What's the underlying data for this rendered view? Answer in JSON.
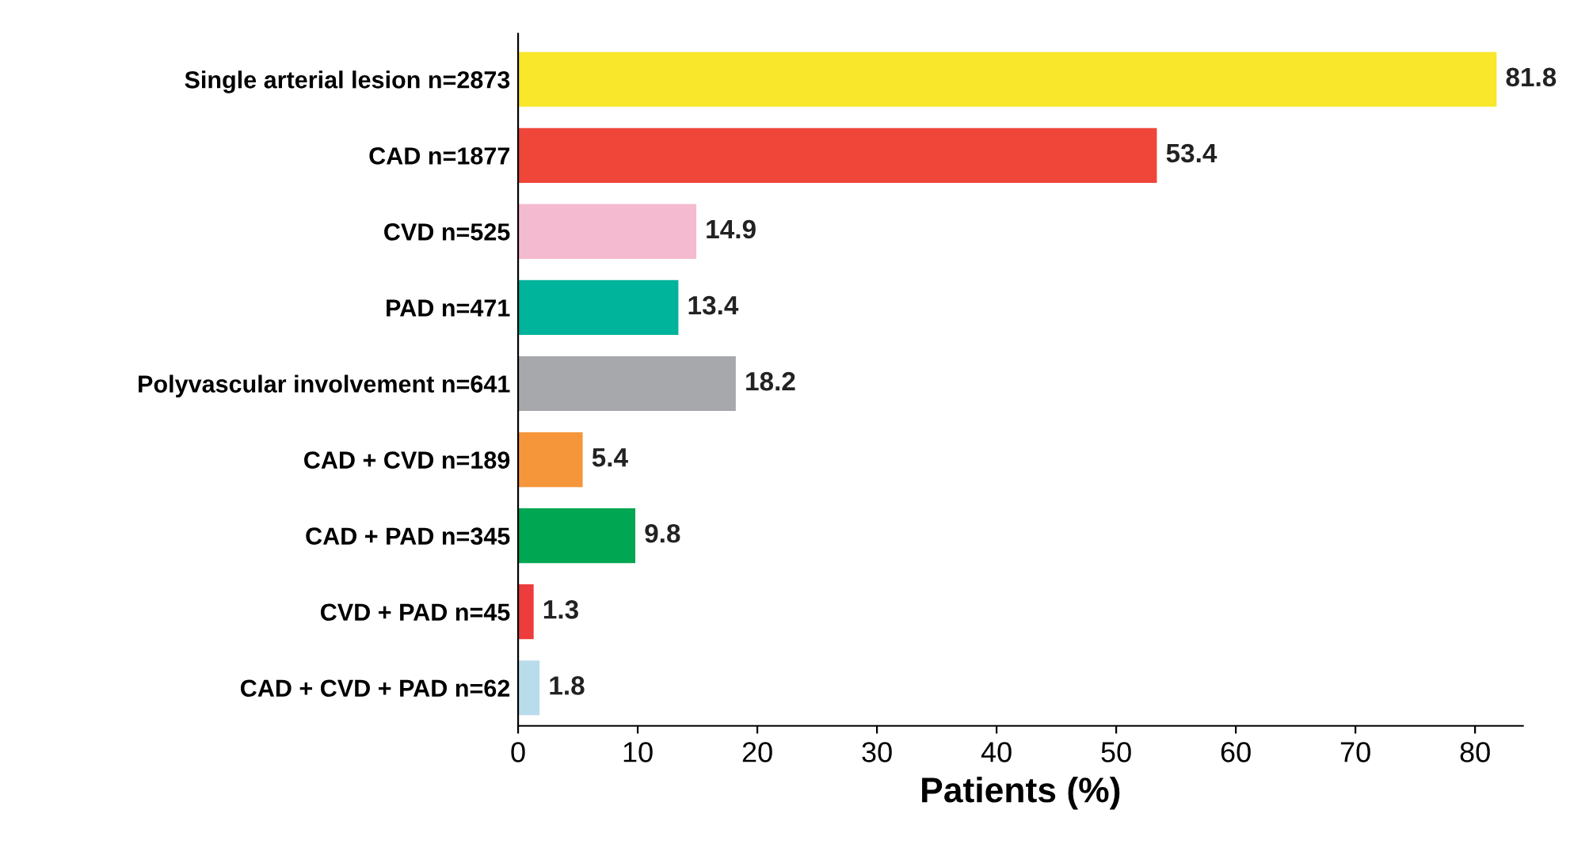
{
  "chart_data": {
    "type": "bar",
    "orientation": "horizontal",
    "xlabel": "Patients (%)",
    "categories": [
      "Single arterial lesion n=2873",
      "CAD n=1877",
      "CVD n=525",
      "PAD n=471",
      "Polyvascular involvement n=641",
      "CAD + CVD n=189",
      "CAD + PAD n=345",
      "CVD + PAD n=45",
      "CAD + CVD + PAD n=62"
    ],
    "values": [
      81.8,
      53.4,
      14.9,
      13.4,
      18.2,
      5.4,
      9.8,
      1.3,
      1.8
    ],
    "colors": [
      "#f8e72a",
      "#ef4639",
      "#f4bad0",
      "#00b39b",
      "#a6a8ab",
      "#f6963b",
      "#00a651",
      "#ee3b3b",
      "#b8dcea"
    ],
    "xlim": [
      0,
      84
    ],
    "xticks": [
      0,
      10,
      20,
      30,
      40,
      50,
      60,
      70,
      80
    ],
    "data_labels": true,
    "grid": false,
    "legend": false
  }
}
